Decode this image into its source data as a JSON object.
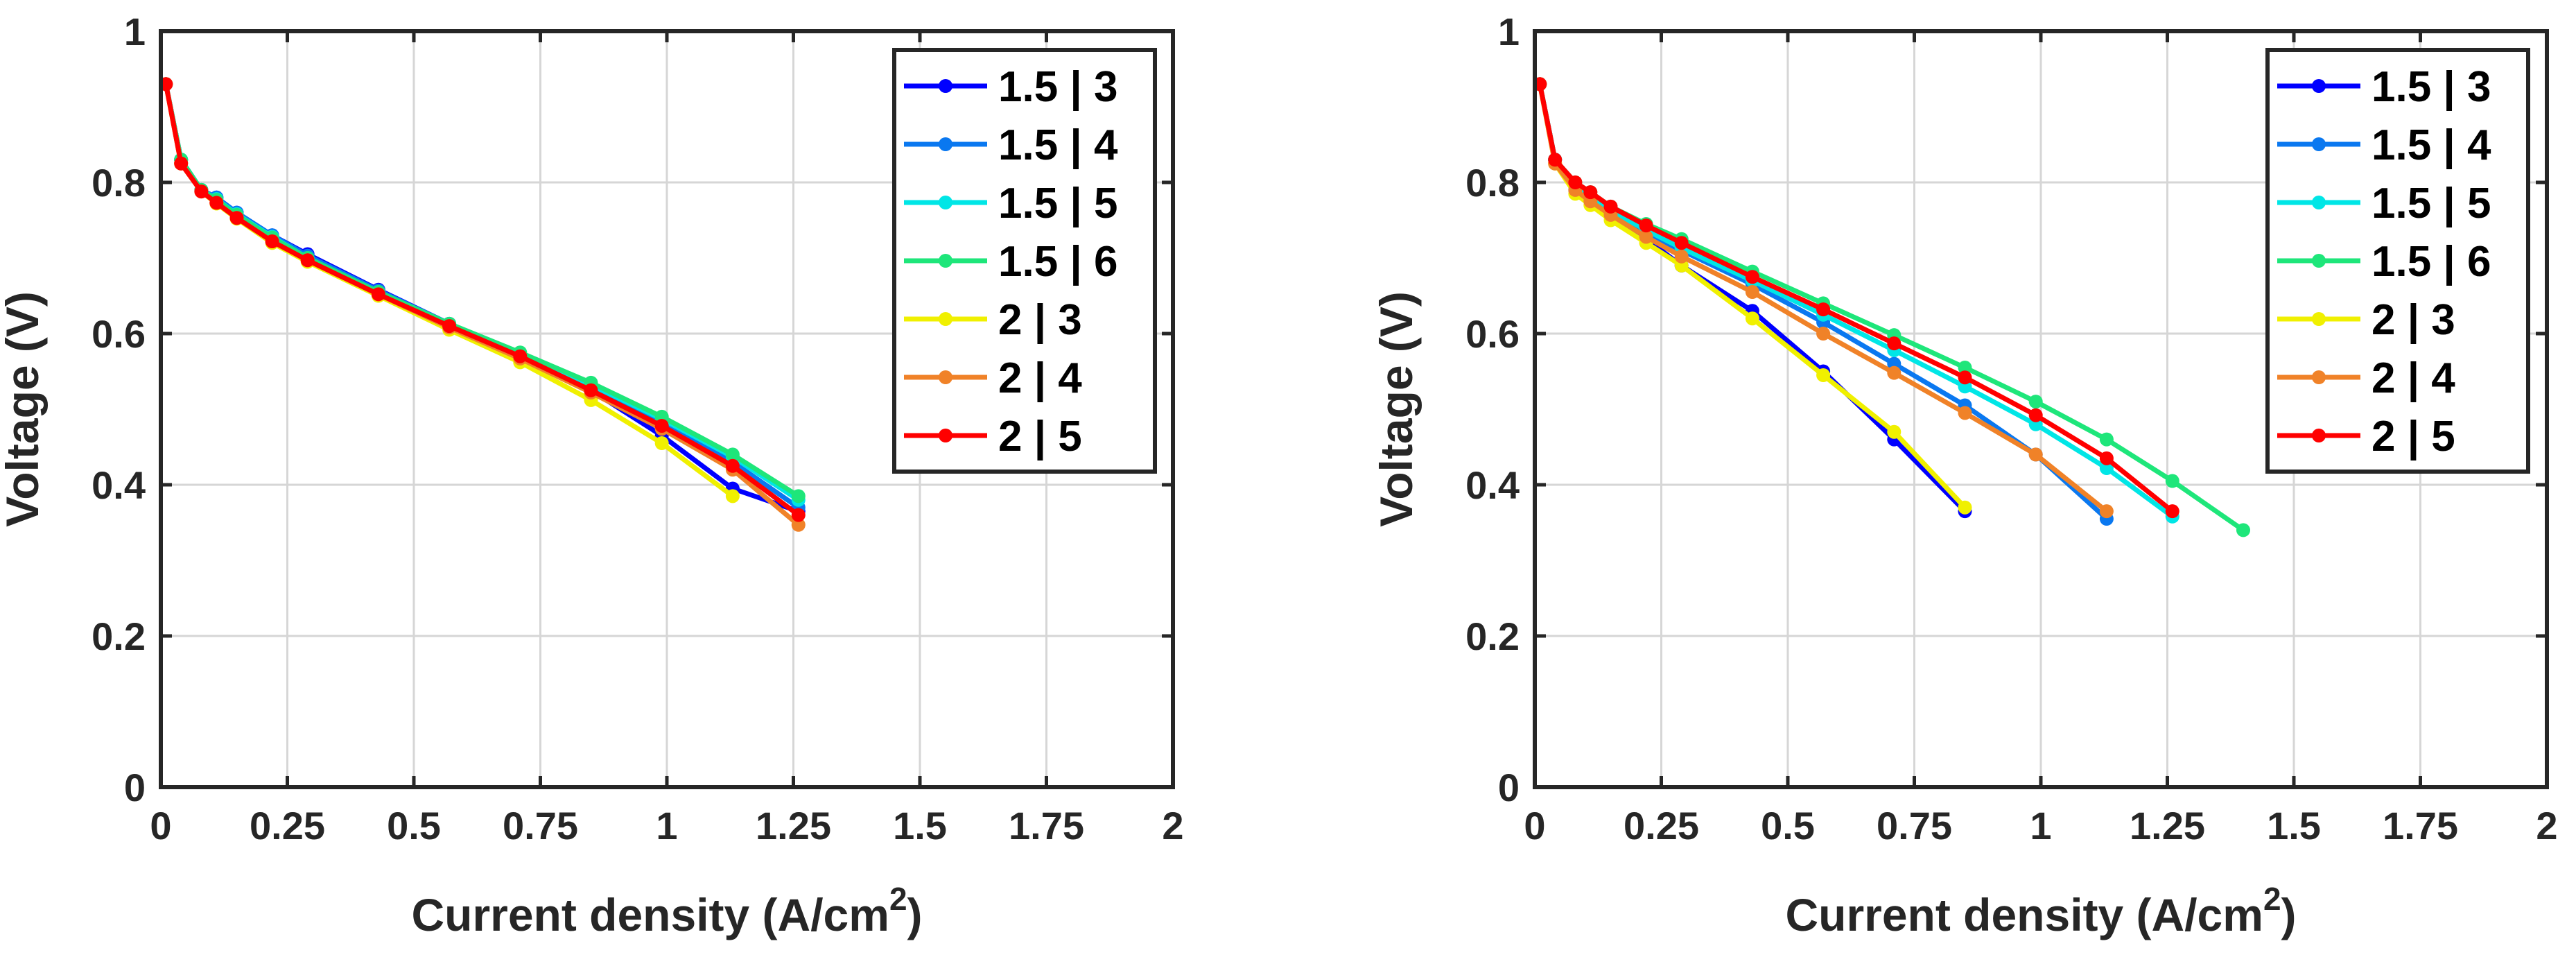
{
  "chart_data": [
    {
      "type": "line",
      "xlabel": "Current density (A/cm",
      "xlabel_sup": "2",
      "xlabel_close": ")",
      "ylabel": "Voltage (V)",
      "xlim": [
        0,
        2
      ],
      "ylim": [
        0,
        1
      ],
      "xticks": [
        0,
        0.25,
        0.5,
        0.75,
        1,
        1.25,
        1.5,
        1.75,
        2
      ],
      "xtick_labels": [
        "0",
        "0.25",
        "0.5",
        "0.75",
        "1",
        "1.25",
        "1.5",
        "1.75",
        "2"
      ],
      "yticks": [
        0,
        0.2,
        0.4,
        0.6,
        0.8,
        1
      ],
      "ytick_labels": [
        "0",
        "0.2",
        "0.4",
        "0.6",
        "0.8",
        "1"
      ],
      "grid": true,
      "legend_position": "top-right",
      "series": [
        {
          "name": "1.5 | 3",
          "color": "#0000ff",
          "x": [
            0.01,
            0.04,
            0.08,
            0.11,
            0.15,
            0.22,
            0.29,
            0.43,
            0.57,
            0.71,
            0.85,
            0.99,
            1.13,
            1.26
          ],
          "y": [
            0.93,
            0.83,
            0.79,
            0.78,
            0.76,
            0.73,
            0.705,
            0.658,
            0.613,
            0.57,
            0.525,
            0.465,
            0.395,
            0.365
          ]
        },
        {
          "name": "1.5 | 4",
          "color": "#0a78f0",
          "x": [
            0.01,
            0.04,
            0.08,
            0.11,
            0.15,
            0.22,
            0.29,
            0.43,
            0.57,
            0.71,
            0.85,
            0.99,
            1.13,
            1.26
          ],
          "y": [
            0.93,
            0.83,
            0.79,
            0.78,
            0.76,
            0.73,
            0.703,
            0.657,
            0.613,
            0.572,
            0.53,
            0.482,
            0.43,
            0.37
          ]
        },
        {
          "name": "1.5 | 5",
          "color": "#00e6e6",
          "x": [
            0.01,
            0.04,
            0.08,
            0.11,
            0.15,
            0.22,
            0.29,
            0.43,
            0.57,
            0.71,
            0.85,
            0.99,
            1.13,
            1.26
          ],
          "y": [
            0.93,
            0.83,
            0.79,
            0.778,
            0.758,
            0.728,
            0.7,
            0.655,
            0.612,
            0.573,
            0.532,
            0.487,
            0.437,
            0.38
          ]
        },
        {
          "name": "1.5 | 6",
          "color": "#1ee67a",
          "x": [
            0.01,
            0.04,
            0.08,
            0.11,
            0.15,
            0.22,
            0.29,
            0.43,
            0.57,
            0.71,
            0.85,
            0.99,
            1.13,
            1.26
          ],
          "y": [
            0.93,
            0.83,
            0.79,
            0.777,
            0.757,
            0.727,
            0.7,
            0.655,
            0.613,
            0.575,
            0.535,
            0.49,
            0.44,
            0.385
          ]
        },
        {
          "name": "2 | 3",
          "color": "#f0f000",
          "x": [
            0.01,
            0.04,
            0.08,
            0.11,
            0.15,
            0.22,
            0.29,
            0.43,
            0.57,
            0.71,
            0.85,
            0.99,
            1.13
          ],
          "y": [
            0.93,
            0.825,
            0.788,
            0.772,
            0.752,
            0.72,
            0.695,
            0.65,
            0.605,
            0.562,
            0.512,
            0.455,
            0.385
          ]
        },
        {
          "name": "2 | 4",
          "color": "#f08228",
          "x": [
            0.01,
            0.04,
            0.08,
            0.11,
            0.15,
            0.22,
            0.29,
            0.43,
            0.57,
            0.71,
            0.85,
            0.99,
            1.13,
            1.26
          ],
          "y": [
            0.93,
            0.825,
            0.788,
            0.773,
            0.753,
            0.722,
            0.697,
            0.652,
            0.608,
            0.567,
            0.522,
            0.474,
            0.42,
            0.347
          ]
        },
        {
          "name": "2 | 5",
          "color": "#ff0000",
          "x": [
            0.01,
            0.04,
            0.08,
            0.11,
            0.15,
            0.22,
            0.29,
            0.43,
            0.57,
            0.71,
            0.85,
            0.99,
            1.13,
            1.26
          ],
          "y": [
            0.93,
            0.825,
            0.788,
            0.773,
            0.753,
            0.722,
            0.697,
            0.652,
            0.61,
            0.57,
            0.525,
            0.478,
            0.425,
            0.36
          ]
        }
      ]
    },
    {
      "type": "line",
      "xlabel": "Current density (A/cm",
      "xlabel_sup": "2",
      "xlabel_close": ")",
      "ylabel": "Voltage (V)",
      "xlim": [
        0,
        2
      ],
      "ylim": [
        0,
        1
      ],
      "xticks": [
        0,
        0.25,
        0.5,
        0.75,
        1,
        1.25,
        1.5,
        1.75,
        2
      ],
      "xtick_labels": [
        "0",
        "0.25",
        "0.5",
        "0.75",
        "1",
        "1.25",
        "1.5",
        "1.75",
        "2"
      ],
      "yticks": [
        0,
        0.2,
        0.4,
        0.6,
        0.8,
        1
      ],
      "ytick_labels": [
        "0",
        "0.2",
        "0.4",
        "0.6",
        "0.8",
        "1"
      ],
      "grid": true,
      "legend_position": "top-right",
      "series": [
        {
          "name": "1.5 | 3",
          "color": "#0000ff",
          "x": [
            0.01,
            0.04,
            0.08,
            0.11,
            0.15,
            0.22,
            0.29,
            0.43,
            0.57,
            0.71,
            0.85
          ],
          "y": [
            0.93,
            0.83,
            0.79,
            0.775,
            0.755,
            0.725,
            0.69,
            0.63,
            0.55,
            0.46,
            0.365
          ]
        },
        {
          "name": "1.5 | 4",
          "color": "#0a78f0",
          "x": [
            0.01,
            0.04,
            0.08,
            0.11,
            0.15,
            0.22,
            0.29,
            0.43,
            0.57,
            0.71,
            0.85,
            0.99,
            1.13
          ],
          "y": [
            0.93,
            0.83,
            0.795,
            0.78,
            0.76,
            0.733,
            0.71,
            0.665,
            0.615,
            0.56,
            0.505,
            0.44,
            0.355
          ]
        },
        {
          "name": "1.5 | 5",
          "color": "#00e6e6",
          "x": [
            0.01,
            0.04,
            0.08,
            0.11,
            0.15,
            0.22,
            0.29,
            0.43,
            0.57,
            0.71,
            0.85,
            0.99,
            1.13,
            1.26
          ],
          "y": [
            0.93,
            0.83,
            0.795,
            0.782,
            0.762,
            0.737,
            0.713,
            0.67,
            0.625,
            0.578,
            0.53,
            0.48,
            0.422,
            0.358
          ]
        },
        {
          "name": "1.5 | 6",
          "color": "#1ee67a",
          "x": [
            0.01,
            0.04,
            0.08,
            0.11,
            0.15,
            0.22,
            0.29,
            0.43,
            0.57,
            0.71,
            0.85,
            0.99,
            1.13,
            1.26,
            1.4
          ],
          "y": [
            0.93,
            0.83,
            0.8,
            0.787,
            0.768,
            0.745,
            0.725,
            0.682,
            0.64,
            0.598,
            0.555,
            0.51,
            0.46,
            0.405,
            0.34
          ]
        },
        {
          "name": "2 | 3",
          "color": "#f0f000",
          "x": [
            0.01,
            0.04,
            0.08,
            0.11,
            0.15,
            0.22,
            0.29,
            0.43,
            0.57,
            0.71,
            0.85
          ],
          "y": [
            0.93,
            0.825,
            0.785,
            0.77,
            0.75,
            0.72,
            0.69,
            0.62,
            0.545,
            0.47,
            0.37
          ]
        },
        {
          "name": "2 | 4",
          "color": "#f08228",
          "x": [
            0.01,
            0.04,
            0.08,
            0.11,
            0.15,
            0.22,
            0.29,
            0.43,
            0.57,
            0.71,
            0.85,
            0.99,
            1.13
          ],
          "y": [
            0.93,
            0.825,
            0.79,
            0.775,
            0.757,
            0.728,
            0.702,
            0.655,
            0.6,
            0.548,
            0.495,
            0.44,
            0.365
          ]
        },
        {
          "name": "2 | 5",
          "color": "#ff0000",
          "x": [
            0.01,
            0.04,
            0.08,
            0.11,
            0.15,
            0.22,
            0.29,
            0.43,
            0.57,
            0.71,
            0.85,
            0.99,
            1.13,
            1.26
          ],
          "y": [
            0.93,
            0.83,
            0.8,
            0.787,
            0.768,
            0.743,
            0.72,
            0.675,
            0.632,
            0.587,
            0.542,
            0.492,
            0.435,
            0.365
          ]
        }
      ]
    }
  ]
}
